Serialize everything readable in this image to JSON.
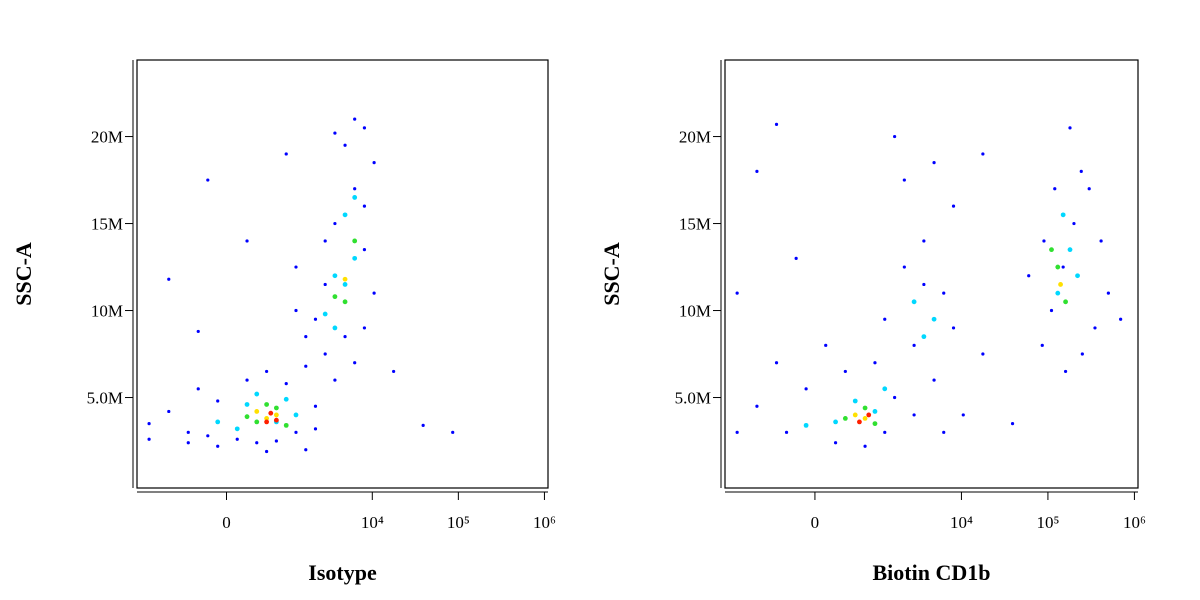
{
  "chart_data": [
    {
      "type": "scatter",
      "xlabel": "Isotype",
      "ylabel": "SSC-A",
      "xscale": "biexponential",
      "xlim": [
        -2200,
        1100000
      ],
      "ylim": [
        -200000,
        24400000
      ],
      "xticks": [
        0,
        {
          "value": 10000,
          "label": "10⁴"
        },
        {
          "value": 100000,
          "label": "10⁵"
        },
        {
          "value": 1000000,
          "label": "10⁶"
        }
      ],
      "yticks": [
        {
          "value": 5000000,
          "label": "5.0M"
        },
        {
          "value": 10000000,
          "label": "10M"
        },
        {
          "value": 15000000,
          "label": "15M"
        },
        {
          "value": 20000000,
          "label": "20M"
        }
      ],
      "series": [
        {
          "color": "#0000ff",
          "x": [
            -1580,
            -905,
            -490,
            -336,
            -211,
            -96,
            118,
            234,
            365,
            523,
            716,
            960,
            1268,
            1665,
            2170,
            2823,
            3670,
            4820,
            6240,
            8100,
            10500,
            8100,
            6240,
            4820,
            8100,
            10500,
            3670,
            2823,
            2170,
            1665,
            1268,
            -336,
            -905,
            -490,
            17700,
            39000,
            86000,
            960,
            -211,
            234,
            3670,
            6240,
            8100,
            1268,
            2823,
            -1580,
            -96,
            523,
            1665,
            2170
          ],
          "y": [
            3500000,
            4200000,
            3000000,
            5500000,
            2800000,
            4800000,
            2600000,
            6000000,
            2400000,
            6500000,
            2500000,
            5800000,
            3000000,
            6800000,
            4500000,
            7500000,
            6000000,
            8500000,
            7000000,
            9000000,
            11000000,
            13500000,
            17000000,
            19500000,
            20500000,
            18500000,
            15000000,
            11500000,
            9500000,
            8500000,
            10000000,
            8800000,
            11800000,
            2400000,
            6500000,
            3400000,
            3000000,
            19000000,
            17500000,
            14000000,
            20200000,
            21000000,
            16000000,
            12500000,
            14000000,
            2600000,
            2200000,
            1900000,
            2000000,
            3200000
          ]
        },
        {
          "color": "#00d8ff",
          "x": [
            118,
            234,
            365,
            716,
            960,
            1268,
            -96,
            3670,
            4820,
            6240,
            2823,
            4820,
            6240,
            3670
          ],
          "y": [
            3200000,
            4600000,
            5200000,
            3600000,
            4900000,
            4000000,
            3600000,
            9000000,
            11500000,
            13000000,
            9800000,
            15500000,
            16500000,
            12000000
          ]
        },
        {
          "color": "#30e030",
          "x": [
            365,
            523,
            716,
            960,
            234,
            4820,
            3670,
            6240
          ],
          "y": [
            3600000,
            4600000,
            4400000,
            3400000,
            3900000,
            10500000,
            10800000,
            14000000
          ]
        },
        {
          "color": "#ffe000",
          "x": [
            523,
            716,
            365,
            4820
          ],
          "y": [
            3800000,
            4000000,
            4200000,
            11800000
          ]
        },
        {
          "color": "#ff2000",
          "x": [
            523,
            716,
            600
          ],
          "y": [
            3600000,
            3700000,
            4100000
          ]
        }
      ]
    },
    {
      "type": "scatter",
      "xlabel": "Biotin CD1b",
      "ylabel": "SSC-A",
      "xscale": "biexponential",
      "xlim": [
        -2200,
        1100000
      ],
      "ylim": [
        -200000,
        24400000
      ],
      "xticks": [
        0,
        {
          "value": 10000,
          "label": "10⁴"
        },
        {
          "value": 100000,
          "label": "10⁵"
        },
        {
          "value": 1000000,
          "label": "10⁶"
        }
      ],
      "yticks": [
        {
          "value": 5000000,
          "label": "5.0M"
        },
        {
          "value": 10000000,
          "label": "10M"
        },
        {
          "value": 15000000,
          "label": "15M"
        },
        {
          "value": 20000000,
          "label": "20M"
        }
      ],
      "series": [
        {
          "color": "#0000ff",
          "x": [
            -1580,
            -1580,
            -905,
            -490,
            -336,
            -211,
            -96,
            118,
            234,
            365,
            716,
            960,
            1268,
            1665,
            2170,
            2823,
            3670,
            4820,
            6240,
            8100,
            10500,
            17700,
            39000,
            2170,
            -905,
            -490,
            1665,
            4820,
            8100,
            17700,
            86000,
            110000,
            150000,
            200000,
            243000,
            180000,
            300000,
            412000,
            350000,
            250000,
            120000,
            90000,
            160000,
            500000,
            693000,
            60000,
            3670,
            2823,
            6240,
            1268
          ],
          "y": [
            3000000,
            11000000,
            4500000,
            7000000,
            3000000,
            13000000,
            5500000,
            8000000,
            2400000,
            6500000,
            2200000,
            7000000,
            9500000,
            5000000,
            12500000,
            8000000,
            14000000,
            6000000,
            11000000,
            9000000,
            4000000,
            7500000,
            3500000,
            17500000,
            18000000,
            20700000,
            20000000,
            18500000,
            16000000,
            19000000,
            8000000,
            10000000,
            12500000,
            15000000,
            18000000,
            20500000,
            17000000,
            14000000,
            9000000,
            7500000,
            17000000,
            14000000,
            6500000,
            11000000,
            9500000,
            12000000,
            11500000,
            4000000,
            3000000,
            3000000
          ]
        },
        {
          "color": "#00d8ff",
          "x": [
            234,
            523,
            960,
            -96,
            2823,
            4820,
            130000,
            180000,
            150000,
            220000,
            1268,
            3670
          ],
          "y": [
            3600000,
            4800000,
            4200000,
            3400000,
            10500000,
            9500000,
            11000000,
            13500000,
            15500000,
            12000000,
            5500000,
            8500000
          ]
        },
        {
          "color": "#30e030",
          "x": [
            365,
            716,
            960,
            130000,
            160000,
            110000
          ],
          "y": [
            3800000,
            4400000,
            3500000,
            12500000,
            10500000,
            13500000
          ]
        },
        {
          "color": "#ffe000",
          "x": [
            523,
            716,
            140000
          ],
          "y": [
            4000000,
            3800000,
            11500000
          ]
        },
        {
          "color": "#ff2000",
          "x": [
            600,
            800
          ],
          "y": [
            3600000,
            4000000
          ]
        }
      ]
    }
  ]
}
